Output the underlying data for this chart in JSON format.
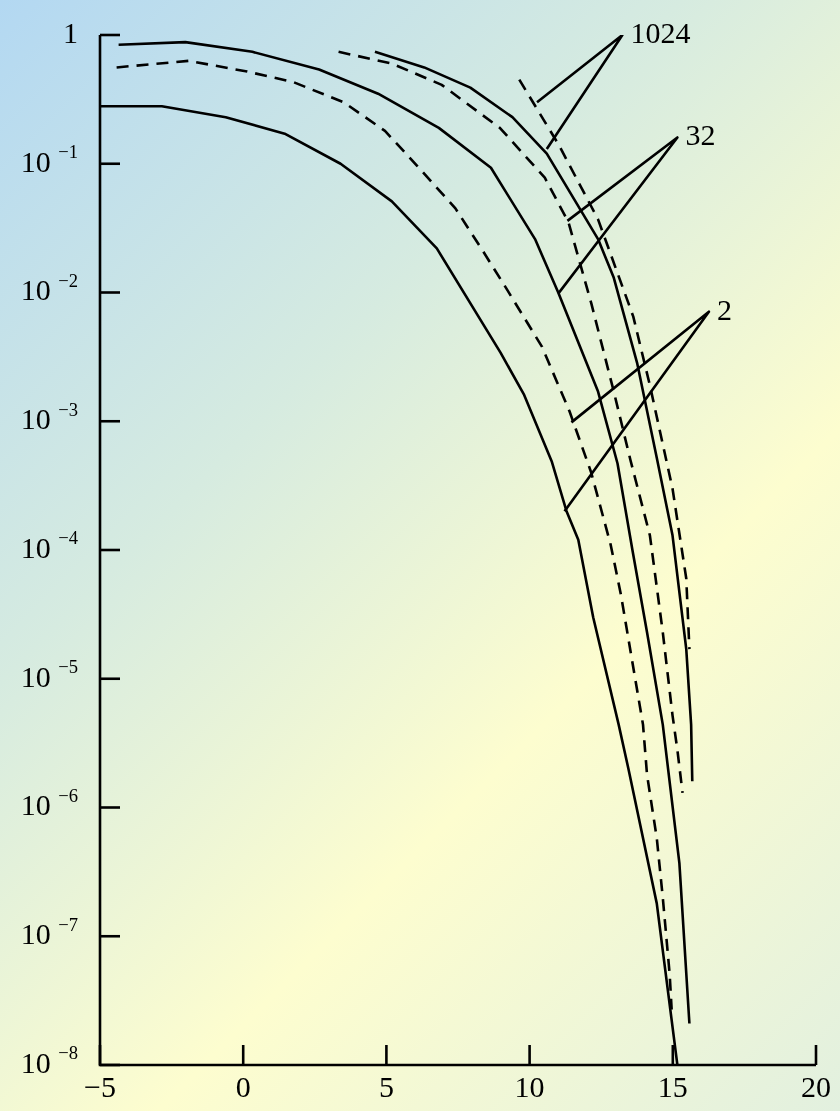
{
  "chart_data": {
    "type": "line",
    "log": "y",
    "legend": false,
    "marker": "none",
    "xlim": [
      -5,
      20
    ],
    "ylim": [
      1e-08,
      1
    ],
    "xticks": [
      {
        "value": -5,
        "label": "−5"
      },
      0,
      5,
      10,
      15,
      20
    ],
    "yticks": [
      {
        "value": 1,
        "label": "1"
      },
      {
        "value": 0.1,
        "label": "10$^{−1}$"
      },
      {
        "value": 0.01,
        "label": "10$^{−2}$"
      },
      {
        "value": 0.001,
        "label": "10$^{−3}$"
      },
      {
        "value": 0.0001,
        "label": "10$^{−4}$"
      },
      {
        "value": 1e-05,
        "label": "10$^{−5}$"
      },
      {
        "value": 1e-06,
        "label": "10$^{−6}$"
      },
      {
        "value": 1e-07,
        "label": "10$^{−7}$"
      },
      {
        "value": 1e-08,
        "label": "10$^{−8}$"
      }
    ],
    "series": [
      {
        "color": "#000000",
        "line_style": "solid",
        "x": [
          -4.35,
          -2.02,
          0.32,
          2.65,
          4.71,
          6.83,
          8.65,
          10.19,
          11.0,
          12.39,
          13.07,
          13.59,
          14.1,
          14.65,
          15.23,
          15.58
        ],
        "values": [
          0.84,
          0.88,
          0.74,
          0.54,
          0.35,
          0.19,
          0.093,
          0.026,
          0.01,
          0.0017,
          0.00047,
          0.0001,
          2.3e-05,
          4.4e-06,
          3.7e-07,
          2.1e-08
        ]
      },
      {
        "color": "#000000",
        "line_style": "dashed",
        "x": [
          -4.42,
          -1.91,
          0.14,
          1.76,
          3.51,
          4.95,
          6.08,
          7.41,
          8.37,
          9.16,
          10.43,
          11.39,
          12.15,
          12.83,
          13.18,
          13.96,
          14.1,
          14.44,
          14.65,
          14.89,
          14.96
        ],
        "values": [
          0.56,
          0.63,
          0.52,
          0.43,
          0.3,
          0.18,
          0.096,
          0.045,
          0.021,
          0.011,
          0.0038,
          0.0012,
          0.0004,
          0.00011,
          4.6e-05,
          4.4e-06,
          1.8e-06,
          5.8e-07,
          2e-07,
          5.1e-08,
          2.7e-08
        ]
      },
      {
        "color": "#000000",
        "line_style": "solid",
        "x": [
          -5,
          -2.84,
          -0.61,
          1.48,
          3.4,
          5.19,
          6.76,
          8.99,
          9.81,
          10.77,
          11.29,
          11.7,
          12.22,
          13.11,
          13.45,
          14.44,
          15.16
        ],
        "values": [
          0.28,
          0.28,
          0.23,
          0.17,
          0.1,
          0.051,
          0.022,
          0.0034,
          0.0016,
          0.00049,
          0.0002,
          0.00012,
          3e-05,
          4.4e-06,
          2e-06,
          1.8e-07,
          1e-08
        ]
      },
      {
        "color": "#000000",
        "line_style": "dashed",
        "x": [
          3.33,
          5.19,
          6.93,
          8.96,
          10.53,
          11.36,
          12.15,
          12.94,
          13.52,
          14.2,
          14.65,
          14.99,
          15.16,
          15.34
        ],
        "values": [
          0.74,
          0.6,
          0.41,
          0.19,
          0.078,
          0.035,
          0.0083,
          0.0017,
          0.0005,
          0.00013,
          2.3e-05,
          5.2e-06,
          2.8e-06,
          1.3e-06
        ]
      },
      {
        "color": "#000000",
        "line_style": "solid",
        "x": [
          4.6,
          6.32,
          7.93,
          9.4,
          10.6,
          12.39,
          12.94,
          13.76,
          14.44,
          14.99,
          15.47,
          15.64,
          15.68
        ],
        "values": [
          0.74,
          0.56,
          0.39,
          0.23,
          0.12,
          0.026,
          0.013,
          0.0028,
          0.00052,
          0.00013,
          1.7e-05,
          4.4e-06,
          1.6e-06
        ]
      },
      {
        "color": "#000000",
        "line_style": "dashed",
        "x": [
          9.64,
          11.02,
          12.39,
          13.62,
          14.2,
          14.99,
          15.47,
          15.58
        ],
        "values": [
          0.45,
          0.14,
          0.037,
          0.0065,
          0.0019,
          0.0003,
          6e-05,
          1.7e-05
        ]
      },
      {
        "color": "#000000",
        "line_style": "solid",
        "x": [
          10.26,
          13.24,
          10.6
        ],
        "values": [
          0.3,
          1,
          0.13
        ]
      },
      {
        "color": "#000000",
        "line_style": "solid",
        "x": [
          11.32,
          15.16,
          11.0
        ],
        "values": [
          0.036,
          0.16,
          0.0098
        ]
      },
      {
        "color": "#000000",
        "line_style": "solid",
        "x": [
          11.46,
          16.26,
          11.22
        ],
        "values": [
          0.00098,
          0.0071,
          0.0002
        ]
      }
    ],
    "annotations": [
      {
        "text": "1024",
        "x": 13.24,
        "y": 1
      },
      {
        "text": "32",
        "x": 15.16,
        "y": 0.16
      },
      {
        "text": "2",
        "x": 16.26,
        "y": 0.0071
      }
    ]
  }
}
